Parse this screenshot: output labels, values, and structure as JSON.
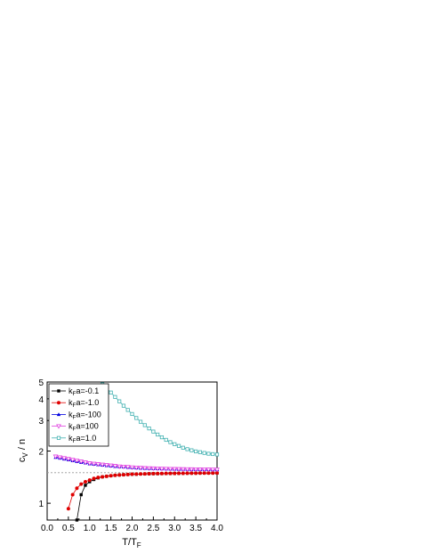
{
  "chart_data": {
    "type": "line",
    "xlabel": {
      "main": "T/T",
      "sub": "F"
    },
    "ylabel": {
      "main": "c",
      "sub": "V",
      "tail": " / n"
    },
    "xlim": [
      0.0,
      4.0
    ],
    "ylim": [
      0.8,
      5.0
    ],
    "log_y": true,
    "x_ticks": [
      "0.0",
      "0.5",
      "1.0",
      "1.5",
      "2.0",
      "2.5",
      "3.0",
      "3.5",
      "4.0"
    ],
    "y_ticks": [
      {
        "value": 1,
        "label": "1"
      },
      {
        "value": 2,
        "label": "2"
      },
      {
        "value": 3,
        "label": "3"
      },
      {
        "value": 4,
        "label": "4"
      },
      {
        "value": 5,
        "label": "5"
      }
    ],
    "reference_line": {
      "y": 1.5,
      "style": "dotted"
    },
    "legend_position": "top-left",
    "series": [
      {
        "name": "kFa=-0.1",
        "label": {
          "pre": "k",
          "sub": "F",
          "post": "a=-0.1"
        },
        "color": "#000000",
        "marker": "square-filled",
        "x": [
          0.7,
          0.8,
          0.9,
          1.0,
          1.1,
          1.2,
          1.3,
          1.4,
          1.5,
          1.6,
          1.7,
          1.8,
          1.9,
          2.0,
          2.1,
          2.2,
          2.3,
          2.4,
          2.5,
          2.6,
          2.7,
          2.8,
          2.9,
          3.0,
          3.1,
          3.2,
          3.3,
          3.4,
          3.5,
          3.6,
          3.7,
          3.8,
          3.9,
          4.0
        ],
        "y": [
          0.8,
          1.12,
          1.27,
          1.33,
          1.37,
          1.4,
          1.42,
          1.43,
          1.44,
          1.45,
          1.455,
          1.46,
          1.465,
          1.47,
          1.47,
          1.475,
          1.475,
          1.478,
          1.48,
          1.48,
          1.482,
          1.484,
          1.485,
          1.486,
          1.487,
          1.488,
          1.489,
          1.49,
          1.49,
          1.491,
          1.492,
          1.492,
          1.493,
          1.493
        ]
      },
      {
        "name": "kFa=-1.0",
        "label": {
          "pre": "k",
          "sub": "F",
          "post": "a=-1.0"
        },
        "color": "#e00000",
        "marker": "circle-filled",
        "x": [
          0.5,
          0.6,
          0.7,
          0.8,
          0.9,
          1.0,
          1.1,
          1.2,
          1.3,
          1.4,
          1.5,
          1.6,
          1.7,
          1.8,
          1.9,
          2.0,
          2.1,
          2.2,
          2.3,
          2.4,
          2.5,
          2.6,
          2.7,
          2.8,
          2.9,
          3.0,
          3.1,
          3.2,
          3.3,
          3.4,
          3.5,
          3.6,
          3.7,
          3.8,
          3.9,
          4.0
        ],
        "y": [
          0.93,
          1.12,
          1.22,
          1.29,
          1.33,
          1.36,
          1.39,
          1.41,
          1.42,
          1.43,
          1.44,
          1.45,
          1.455,
          1.46,
          1.465,
          1.47,
          1.472,
          1.475,
          1.477,
          1.48,
          1.481,
          1.483,
          1.484,
          1.485,
          1.486,
          1.487,
          1.488,
          1.489,
          1.49,
          1.49,
          1.491,
          1.492,
          1.492,
          1.493,
          1.493,
          1.494
        ]
      },
      {
        "name": "kFa=-100",
        "label": {
          "pre": "k",
          "sub": "F",
          "post": "a=-100"
        },
        "color": "#0000e0",
        "marker": "triangle-up-filled",
        "x": [
          0.2,
          0.3,
          0.4,
          0.5,
          0.6,
          0.7,
          0.8,
          0.9,
          1.0,
          1.1,
          1.2,
          1.3,
          1.4,
          1.5,
          1.6,
          1.7,
          1.8,
          1.9,
          2.0,
          2.1,
          2.2,
          2.3,
          2.4,
          2.5,
          2.6,
          2.7,
          2.8,
          2.9,
          3.0,
          3.1,
          3.2,
          3.3,
          3.4,
          3.5,
          3.6,
          3.7,
          3.8,
          3.9,
          4.0
        ],
        "y": [
          1.84,
          1.82,
          1.8,
          1.78,
          1.76,
          1.74,
          1.72,
          1.71,
          1.69,
          1.68,
          1.67,
          1.66,
          1.65,
          1.64,
          1.63,
          1.625,
          1.62,
          1.61,
          1.605,
          1.6,
          1.595,
          1.59,
          1.588,
          1.585,
          1.582,
          1.58,
          1.577,
          1.575,
          1.573,
          1.571,
          1.57,
          1.568,
          1.567,
          1.566,
          1.565,
          1.564,
          1.563,
          1.562,
          1.561
        ]
      },
      {
        "name": "kFa=100",
        "label": {
          "pre": "k",
          "sub": "F",
          "post": "a=100"
        },
        "color": "#e040e0",
        "marker": "triangle-down-open",
        "x": [
          0.2,
          0.3,
          0.4,
          0.5,
          0.6,
          0.7,
          0.8,
          0.9,
          1.0,
          1.1,
          1.2,
          1.3,
          1.4,
          1.5,
          1.6,
          1.7,
          1.8,
          1.9,
          2.0,
          2.1,
          2.2,
          2.3,
          2.4,
          2.5,
          2.6,
          2.7,
          2.8,
          2.9,
          3.0,
          3.1,
          3.2,
          3.3,
          3.4,
          3.5,
          3.6,
          3.7,
          3.8,
          3.9,
          4.0
        ],
        "y": [
          1.86,
          1.84,
          1.82,
          1.8,
          1.78,
          1.76,
          1.74,
          1.72,
          1.7,
          1.69,
          1.68,
          1.67,
          1.66,
          1.65,
          1.64,
          1.63,
          1.625,
          1.62,
          1.61,
          1.605,
          1.6,
          1.595,
          1.59,
          1.588,
          1.585,
          1.582,
          1.58,
          1.578,
          1.576,
          1.574,
          1.572,
          1.57,
          1.569,
          1.568,
          1.567,
          1.566,
          1.565,
          1.564,
          1.563
        ]
      },
      {
        "name": "kFa=1.0",
        "label": {
          "pre": "k",
          "sub": "F",
          "post": "a=1.0"
        },
        "color": "#40b0b0",
        "marker": "square-open",
        "x": [
          1.3,
          1.4,
          1.5,
          1.6,
          1.7,
          1.8,
          1.9,
          2.0,
          2.1,
          2.2,
          2.3,
          2.4,
          2.5,
          2.6,
          2.7,
          2.8,
          2.9,
          3.0,
          3.1,
          3.2,
          3.3,
          3.4,
          3.5,
          3.6,
          3.7,
          3.8,
          3.9,
          4.0
        ],
        "y": [
          4.85,
          4.6,
          4.35,
          4.1,
          3.87,
          3.65,
          3.45,
          3.27,
          3.1,
          2.95,
          2.82,
          2.7,
          2.59,
          2.49,
          2.4,
          2.32,
          2.25,
          2.19,
          2.14,
          2.09,
          2.05,
          2.02,
          1.99,
          1.97,
          1.95,
          1.93,
          1.92,
          1.91
        ]
      }
    ]
  }
}
